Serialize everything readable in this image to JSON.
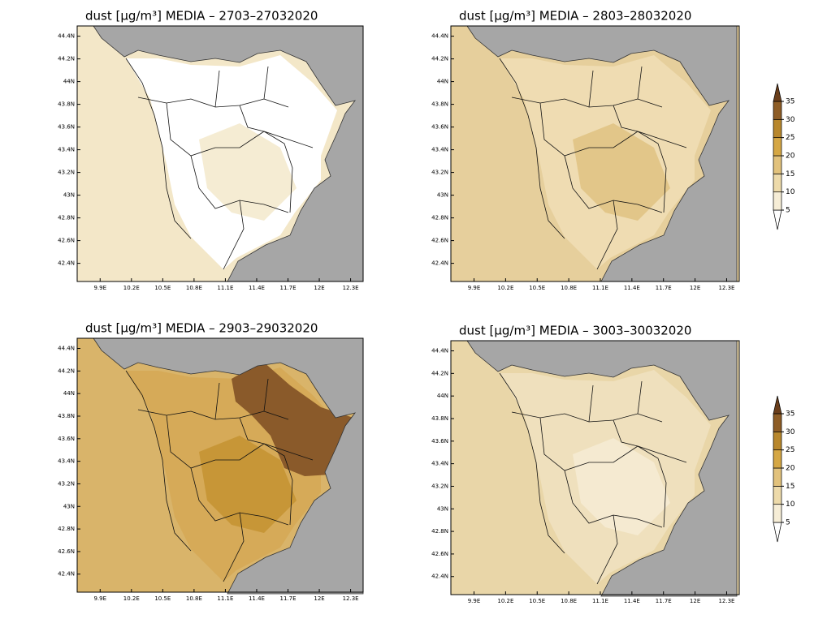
{
  "chart_data": [
    {
      "type": "map",
      "title": "dust  [μg/m³] MEDIA – 2703–27032020",
      "xlim": [
        9.68,
        12.42
      ],
      "ylim": [
        42.24,
        44.49
      ],
      "xticks": [
        {
          "value": 9.9,
          "label": "9.9E"
        },
        {
          "value": 10.2,
          "label": "10.2E"
        },
        {
          "value": 10.5,
          "label": "10.5E"
        },
        {
          "value": 10.8,
          "label": "10.8E"
        },
        {
          "value": 11.1,
          "label": "11.1E"
        },
        {
          "value": 11.4,
          "label": "11.4E"
        },
        {
          "value": 11.7,
          "label": "11.7E"
        },
        {
          "value": 12,
          "label": "12E"
        },
        {
          "value": 12.3,
          "label": "12.3E"
        }
      ],
      "yticks": [
        {
          "value": 42.4,
          "label": "42.4N"
        },
        {
          "value": 42.6,
          "label": "42.6N"
        },
        {
          "value": 42.8,
          "label": "42.8N"
        },
        {
          "value": 43,
          "label": "43N"
        },
        {
          "value": 43.2,
          "label": "43.2N"
        },
        {
          "value": 43.4,
          "label": "43.4N"
        },
        {
          "value": 43.6,
          "label": "43.6N"
        },
        {
          "value": 43.8,
          "label": "43.8N"
        },
        {
          "value": 44,
          "label": "44N"
        },
        {
          "value": 44.2,
          "label": "44.2N"
        },
        {
          "value": 44.4,
          "label": "44.4N"
        }
      ]
    },
    {
      "type": "map",
      "title": "dust  [μg/m³] MEDIA – 2803–28032020",
      "xlim": [
        9.68,
        12.42
      ],
      "ylim": [
        42.24,
        44.49
      ],
      "xticks": [
        {
          "value": 9.9,
          "label": "9.9E"
        },
        {
          "value": 10.2,
          "label": "10.2E"
        },
        {
          "value": 10.5,
          "label": "10.5E"
        },
        {
          "value": 10.8,
          "label": "10.8E"
        },
        {
          "value": 11.1,
          "label": "11.1E"
        },
        {
          "value": 11.4,
          "label": "11.4E"
        },
        {
          "value": 11.7,
          "label": "11.7E"
        },
        {
          "value": 12,
          "label": "12E"
        },
        {
          "value": 12.3,
          "label": "12.3E"
        }
      ],
      "yticks": [
        {
          "value": 42.4,
          "label": "42.4N"
        },
        {
          "value": 42.6,
          "label": "42.6N"
        },
        {
          "value": 42.8,
          "label": "42.8N"
        },
        {
          "value": 43,
          "label": "43N"
        },
        {
          "value": 43.2,
          "label": "43.2N"
        },
        {
          "value": 43.4,
          "label": "43.4N"
        },
        {
          "value": 43.6,
          "label": "43.6N"
        },
        {
          "value": 43.8,
          "label": "43.8N"
        },
        {
          "value": 44,
          "label": "44N"
        },
        {
          "value": 44.2,
          "label": "44.2N"
        },
        {
          "value": 44.4,
          "label": "44.4N"
        }
      ]
    },
    {
      "type": "map",
      "title": "dust  [μg/m³] MEDIA – 2903–29032020",
      "xlim": [
        9.68,
        12.42
      ],
      "ylim": [
        42.24,
        44.49
      ],
      "xticks": [
        {
          "value": 9.9,
          "label": "9.9E"
        },
        {
          "value": 10.2,
          "label": "10.2E"
        },
        {
          "value": 10.5,
          "label": "10.5E"
        },
        {
          "value": 10.8,
          "label": "10.8E"
        },
        {
          "value": 11.1,
          "label": "11.1E"
        },
        {
          "value": 11.4,
          "label": "11.4E"
        },
        {
          "value": 11.7,
          "label": "11.7E"
        },
        {
          "value": 12,
          "label": "12E"
        },
        {
          "value": 12.3,
          "label": "12.3E"
        }
      ],
      "yticks": [
        {
          "value": 42.4,
          "label": "42.4N"
        },
        {
          "value": 42.6,
          "label": "42.6N"
        },
        {
          "value": 42.8,
          "label": "42.8N"
        },
        {
          "value": 43,
          "label": "43N"
        },
        {
          "value": 43.2,
          "label": "43.2N"
        },
        {
          "value": 43.4,
          "label": "43.4N"
        },
        {
          "value": 43.6,
          "label": "43.6N"
        },
        {
          "value": 43.8,
          "label": "43.8N"
        },
        {
          "value": 44,
          "label": "44N"
        },
        {
          "value": 44.2,
          "label": "44.2N"
        },
        {
          "value": 44.4,
          "label": "44.4N"
        }
      ]
    },
    {
      "type": "map",
      "title": "dust  [μg/m³] MEDIA – 3003–30032020",
      "xlim": [
        9.68,
        12.42
      ],
      "ylim": [
        42.24,
        44.49
      ],
      "xticks": [
        {
          "value": 9.9,
          "label": "9.9E"
        },
        {
          "value": 10.2,
          "label": "10.2E"
        },
        {
          "value": 10.5,
          "label": "10.5E"
        },
        {
          "value": 10.8,
          "label": "10.8E"
        },
        {
          "value": 11.1,
          "label": "11.1E"
        },
        {
          "value": 11.4,
          "label": "11.4E"
        },
        {
          "value": 11.7,
          "label": "11.7E"
        },
        {
          "value": 12,
          "label": "12E"
        },
        {
          "value": 12.3,
          "label": "12.3E"
        }
      ],
      "yticks": [
        {
          "value": 42.4,
          "label": "42.4N"
        },
        {
          "value": 42.6,
          "label": "42.6N"
        },
        {
          "value": 42.8,
          "label": "42.8N"
        },
        {
          "value": 43,
          "label": "43N"
        },
        {
          "value": 43.2,
          "label": "43.2N"
        },
        {
          "value": 43.4,
          "label": "43.4N"
        },
        {
          "value": 43.6,
          "label": "43.6N"
        },
        {
          "value": 43.8,
          "label": "43.8N"
        },
        {
          "value": 44,
          "label": "44N"
        },
        {
          "value": 44.2,
          "label": "44.2N"
        },
        {
          "value": 44.4,
          "label": "44.4N"
        }
      ]
    }
  ],
  "colorbars": [
    {
      "levels": [
        5,
        10,
        15,
        20,
        25,
        30,
        35
      ],
      "colors": [
        "#ffffff",
        "#f6edd6",
        "#eddaaa",
        "#e2c27c",
        "#d5a744",
        "#b8872c",
        "#8e5d26",
        "#6a3e1b"
      ]
    },
    {
      "levels": [
        5,
        10,
        15,
        20,
        25,
        30,
        35
      ],
      "colors": [
        "#ffffff",
        "#f6edd6",
        "#eddaaa",
        "#e2c27c",
        "#d5a744",
        "#b8872c",
        "#8e5d26",
        "#6a3e1b"
      ]
    }
  ]
}
